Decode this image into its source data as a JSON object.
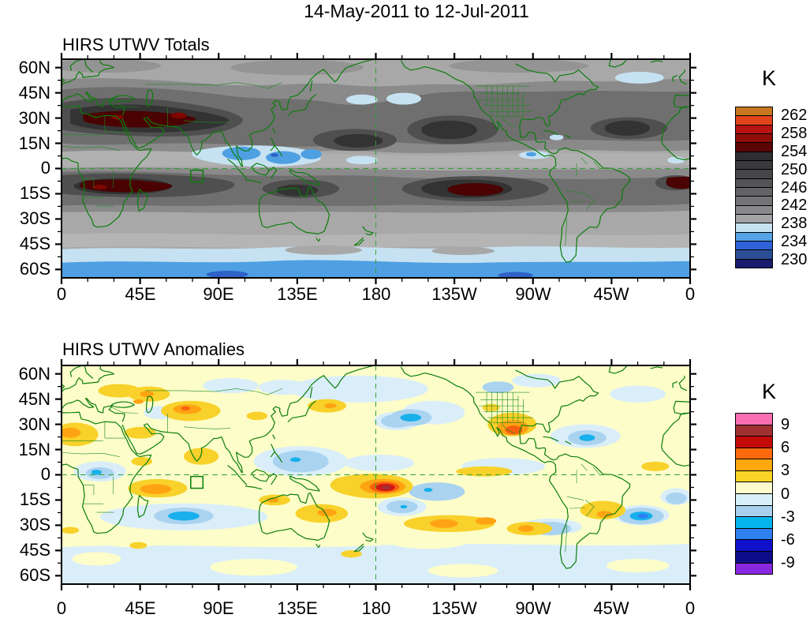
{
  "figure": {
    "title": "14-May-2011 to 12-Jul-2011",
    "background": "#FFFFFF"
  },
  "axes": {
    "x_tick_labels": [
      "0",
      "45E",
      "90E",
      "135E",
      "180",
      "135W",
      "90W",
      "45W",
      "0"
    ],
    "y_tick_labels": [
      "60N",
      "45N",
      "30N",
      "15N",
      "0",
      "15S",
      "30S",
      "45S",
      "60S"
    ],
    "x_major_step_deg": 45,
    "x_minor_step_deg": 15,
    "y_major_step_deg": 15,
    "y_minor_step_deg": 7.5
  },
  "panels": [
    {
      "title": "HIRS UTWV Totals",
      "colorbar": {
        "unit": "K",
        "tick_labels": [
          "262",
          "258",
          "254",
          "250",
          "246",
          "242",
          "238",
          "234",
          "230"
        ],
        "colors_top_to_bottom": [
          "#C5761F",
          "#E2441A",
          "#B51410",
          "#8F0E0A",
          "#5C0505",
          "#2E2E30",
          "#3A3A3C",
          "#464649",
          "#545457",
          "#636366",
          "#747477",
          "#89898B",
          "#A4A4A6",
          "#C6E2F2",
          "#55A2E6",
          "#2F62D8",
          "#2C4E97",
          "#1B1B6E"
        ]
      }
    },
    {
      "title": "HIRS UTWV Anomalies",
      "colorbar": {
        "unit": "K",
        "tick_labels": [
          "9",
          "6",
          "3",
          "0",
          "-3",
          "-6",
          "-9"
        ],
        "colors_top_to_bottom": [
          "#FA6EB2",
          "#A03030",
          "#C50A0A",
          "#FD6A0D",
          "#FFA70D",
          "#FAD426",
          "#FBFBCB",
          "#D7F0F7",
          "#A9D1EF",
          "#06B4EC",
          "#2E80F0",
          "#1111CC",
          "#0D0D8A",
          "#8928E0"
        ]
      }
    }
  ],
  "palette": {
    "coastline_green": "#0B7D0B",
    "border_green": "#1E8A1E",
    "dashed_line_green": "#2FA12F",
    "frame_black": "#000000"
  },
  "chart_data": [
    {
      "type": "heatmap",
      "variant": "filled-contour world map, cylindrical equidistant",
      "title": "HIRS UTWV Totals",
      "period": "14-May-2011 to 12-Jul-2011",
      "units": "K",
      "xlabel_ticks": [
        "0",
        "45E",
        "90E",
        "135E",
        "180",
        "135W",
        "90W",
        "45W",
        "0"
      ],
      "ylabel_ticks": [
        "60N",
        "45N",
        "30N",
        "15N",
        "0",
        "15S",
        "30S",
        "45S",
        "60S"
      ],
      "lon_range_deg_east": [
        0,
        360
      ],
      "lat_range": [
        -65,
        65
      ],
      "contour_interval_K": 2,
      "colorbar_tick_values": [
        262,
        258,
        254,
        250,
        246,
        242,
        238,
        234,
        230
      ],
      "value_range_shown_K": [
        228,
        264
      ],
      "overlays": [
        "green coastlines with country and US state borders",
        "dashed green equator line",
        "dashed green 180-degree meridian line",
        "green box over ~1S-8S, 74E-81E"
      ],
      "features": [
        {
          "region": "N Africa / Middle East / SW Asia, 20-35N 10-78E",
          "value_K": ">254 (dark red maximum)"
        },
        {
          "region": "southern Africa / SW Indian Ocean, 7-15S 10-60E",
          "value_K": ">254 (dark red maximum)"
        },
        {
          "region": "central South Pacific, 9-16S 145-105W",
          "value_K": ">254 (dark red maximum)"
        },
        {
          "region": "SE Atlantic near 5-13S, 12W-0",
          "value_K": ">254 (dark red)"
        },
        {
          "region": "subtropical dark bands 15-40N and 4-25S, most longitudes",
          "value_K": "246-254 (dark gray)"
        },
        {
          "region": "Bay of Bengal / Maritime Continent, 5S-15N 85-150E",
          "value_K": "<236 (light and medium blue minimum)"
        },
        {
          "region": "equatorial Pacific / Atlantic pale patches",
          "value_K": "236-238 (pale blue)"
        },
        {
          "region": "N Pacific 37-45N near dateline",
          "value_K": "236-238 (pale blue)"
        },
        {
          "region": "Southern Ocean band 50-65S, all longitudes",
          "value_K": "<236 (pale to medium blue)"
        },
        {
          "region": "midlatitude background",
          "value_K": "238-244 (light grays)"
        }
      ]
    },
    {
      "type": "heatmap",
      "variant": "filled-contour world map, cylindrical equidistant",
      "title": "HIRS UTWV Anomalies",
      "period": "14-May-2011 to 12-Jul-2011",
      "units": "K",
      "xlabel_ticks": [
        "0",
        "45E",
        "90E",
        "135E",
        "180",
        "135W",
        "90W",
        "45W",
        "0"
      ],
      "ylabel_ticks": [
        "60N",
        "45N",
        "30N",
        "15N",
        "0",
        "15S",
        "30S",
        "45S",
        "60S"
      ],
      "lon_range_deg_east": [
        0,
        360
      ],
      "lat_range": [
        -65,
        65
      ],
      "contour_interval_K": 1.5,
      "colorbar_tick_values": [
        9,
        6,
        3,
        0,
        -3,
        -6,
        -9
      ],
      "value_range_shown_K": [
        -10.5,
        10.5
      ],
      "overlays": [
        "green coastlines with country and US state borders",
        "dashed green equator line",
        "dashed green 180-degree meridian line",
        "green box over ~1S-8S, 74E-81E"
      ],
      "features": [
        {
          "region": "equatorial W Pacific just E of dateline, ~5-11S 178E-168W",
          "value_K": "+7.5 to +9 maximum (red with dark-red core)"
        },
        {
          "region": "Texas / northern Mexico, 22-35N 108-93W",
          "value_K": "+4.5 to +6 (orange core)"
        },
        {
          "region": "western Indian Ocean, 4-12S 40-70E",
          "value_K": "+3 to +4.5 (orange core)"
        },
        {
          "region": "central Asia, 30-42N 58-90E",
          "value_K": "+3 to +4.5 (orange core)"
        },
        {
          "region": "NW Africa, 18-32N 5W-20E",
          "value_K": "+3 to +4.5"
        },
        {
          "region": "S Pacific band, 24-36S 160-70W",
          "value_K": "+1.5 to +4.5 (gold with orange cores)"
        },
        {
          "region": "E Australia / Coral Sea, 18-30S",
          "value_K": "+1.5 to +3"
        },
        {
          "region": "S Indian Ocean, 20-28S 55-85E",
          "value_K": "-4.5 to -6 (cyan core)"
        },
        {
          "region": "S Atlantic, 20-30S 35-15W",
          "value_K": "-4.5 to -7.5 (cyan/blue core)"
        },
        {
          "region": "NE Pacific, 26-36N 170-150W",
          "value_K": "-3 to -4.5"
        },
        {
          "region": "subtropical N Atlantic, 15-28N 70-50W",
          "value_K": "-3 to -4.5"
        },
        {
          "region": "Maritime Continent, 8S-12N 110-165E",
          "value_K": "-1.5 to -3 (light blue)"
        },
        {
          "region": "Southern Ocean and N Pacific high latitudes",
          "value_K": "0 to -1.5 (pale blue)"
        },
        {
          "region": "background elsewhere",
          "value_K": "0 to +1.5 (pale yellow)"
        }
      ]
    }
  ]
}
